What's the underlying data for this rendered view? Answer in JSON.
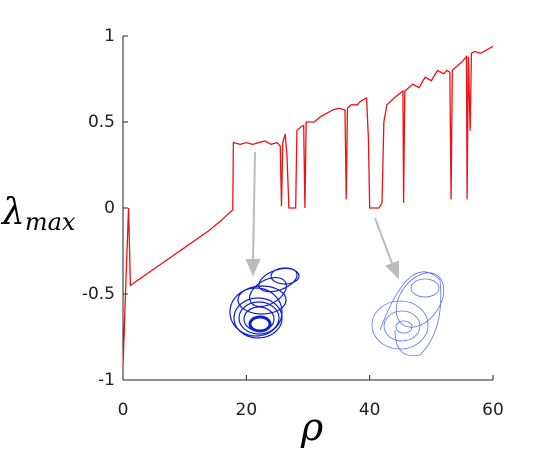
{
  "chart_data": {
    "type": "line",
    "ylabel": "λ",
    "ylabel_subscript": "max",
    "xlabel": "ρ",
    "color": "#ee1111",
    "x": [
      0,
      0.5,
      0.9,
      1.2,
      2,
      4,
      6,
      8,
      10,
      12,
      14,
      16,
      17.8,
      17.9,
      19,
      20,
      21,
      22,
      23,
      24,
      25,
      25.5,
      25.7,
      25.9,
      26.3,
      26.6,
      26.9,
      28,
      28.2,
      28.8,
      29.3,
      29.5,
      29.7,
      31,
      32,
      33,
      34,
      35,
      36,
      36.2,
      36.4,
      37,
      38,
      38.5,
      39.5,
      39.8,
      40,
      41.5,
      42,
      42.3,
      42.8,
      44,
      45,
      45.4,
      45.5,
      45.7,
      47,
      48,
      49,
      50,
      51,
      52,
      52.5,
      53,
      53.2,
      53.4,
      54,
      55,
      55.7,
      55.8,
      56,
      56.3,
      56.5,
      57,
      58,
      59,
      60
    ],
    "values": [
      -0.92,
      -0.4,
      0,
      -0.45,
      -0.43,
      -0.38,
      -0.33,
      -0.28,
      -0.23,
      -0.18,
      -0.13,
      -0.07,
      -0.01,
      0.38,
      0.37,
      0.38,
      0.37,
      0.38,
      0.39,
      0.37,
      0.38,
      0.36,
      0.01,
      0.38,
      0.43,
      0.3,
      0,
      0,
      0.45,
      0.47,
      0.48,
      0,
      0.5,
      0.5,
      0.53,
      0.55,
      0.57,
      0.58,
      0.57,
      0.05,
      0.58,
      0.6,
      0.6,
      0.62,
      0.64,
      0.4,
      0,
      0,
      0.03,
      0.5,
      0.6,
      0.64,
      0.67,
      0.68,
      0.03,
      0.68,
      0.72,
      0.7,
      0.76,
      0.74,
      0.8,
      0.78,
      0.8,
      0.79,
      0.05,
      0.8,
      0.82,
      0.85,
      0.88,
      0.05,
      0.88,
      0.45,
      0.9,
      0.91,
      0.9,
      0.92,
      0.94
    ],
    "xlim": [
      0,
      60
    ],
    "ylim": [
      -1,
      1
    ],
    "xticks": [
      0,
      20,
      40,
      60
    ],
    "yticks": [
      -1,
      -0.5,
      0,
      0.5,
      1
    ]
  }
}
